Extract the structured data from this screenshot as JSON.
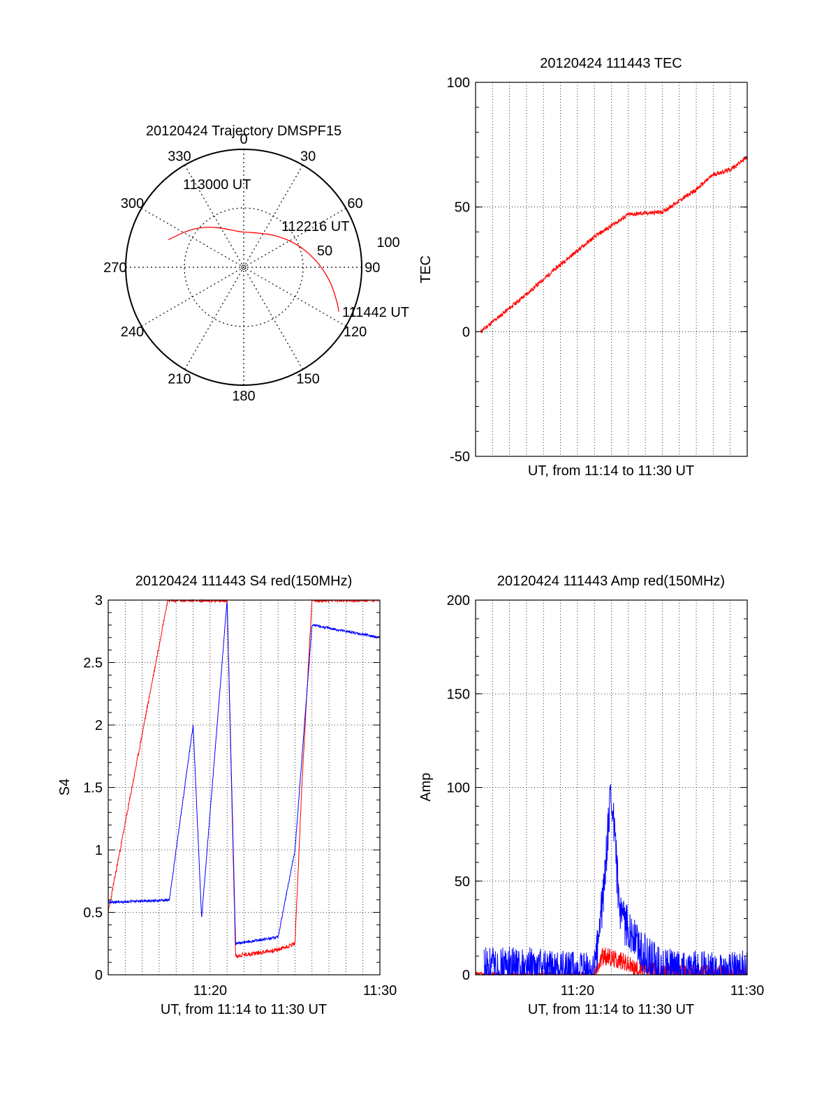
{
  "chart_data": [
    {
      "type": "polar",
      "title": "20120424 Trajectory DMSPF15",
      "azimuth_labels": [
        "0",
        "30",
        "60",
        "90",
        "120",
        "150",
        "180",
        "210",
        "240",
        "270",
        "300",
        "330"
      ],
      "radial_ticks": [
        "50",
        "100"
      ],
      "trajectory": {
        "color": "#ff0000",
        "points": [
          [
            -70,
            68
          ],
          [
            -55,
            56
          ],
          [
            -40,
            45
          ],
          [
            -25,
            36
          ],
          [
            -5,
            30
          ],
          [
            10,
            30
          ],
          [
            20,
            31
          ],
          [
            30,
            33
          ],
          [
            40,
            36
          ],
          [
            50,
            40
          ],
          [
            60,
            45
          ],
          [
            70,
            51
          ],
          [
            80,
            58
          ],
          [
            90,
            66
          ],
          [
            100,
            75
          ],
          [
            110,
            84
          ],
          [
            115,
            89
          ]
        ]
      },
      "annotations": [
        {
          "text": "113000 UT",
          "az": -70,
          "r": 68
        },
        {
          "text": "112216 UT",
          "az": 56,
          "r": 63
        },
        {
          "text": "111442 UT",
          "az": 114,
          "r": 92
        }
      ]
    },
    {
      "type": "line",
      "title": "20120424 111443 TEC",
      "ylabel": "TEC",
      "xlabel": "UT, from 11:14 to 11:30 UT",
      "ylim": [
        -50,
        100
      ],
      "yticks": [
        "-50",
        "0",
        "50",
        "100"
      ],
      "xticks": [],
      "grid": true,
      "series": [
        {
          "color": "#ff0000",
          "x_min": [
            0.3,
            3.0,
            5.0,
            7.0,
            9.0,
            11.0,
            13.0,
            14.0,
            15.0,
            16.0
          ],
          "y": [
            0,
            15,
            27,
            38,
            47,
            48,
            57,
            63,
            65,
            70
          ]
        }
      ]
    },
    {
      "type": "line",
      "title": "20120424 111443 S4 red(150MHz)",
      "ylabel": "S4",
      "xlabel": "UT, from 11:14 to 11:30 UT",
      "ylim": [
        0,
        3
      ],
      "yticks": [
        "0",
        "0.5",
        "1",
        "1.5",
        "2",
        "2.5",
        "3"
      ],
      "xticks": [
        "11:20",
        "11:30"
      ],
      "grid": true,
      "series": [
        {
          "color": "#ff0000",
          "x_min": [
            0.0,
            3.5,
            7.0,
            7.5,
            10.0,
            11.0,
            11.4,
            12.0,
            16.0
          ],
          "y": [
            0.5,
            3.0,
            3.0,
            0.15,
            0.2,
            0.25,
            1.5,
            3.0,
            3.0
          ]
        },
        {
          "color": "#0000ff",
          "x_min": [
            0.0,
            3.6,
            5.0,
            5.5,
            7.0,
            7.5,
            10.0,
            11.0,
            12.0,
            16.0
          ],
          "y": [
            0.58,
            0.6,
            2.0,
            0.45,
            3.0,
            0.25,
            0.3,
            1.0,
            2.8,
            2.7
          ]
        }
      ]
    },
    {
      "type": "line",
      "title": "20120424 111443 Amp red(150MHz)",
      "ylabel": "Amp",
      "xlabel": "UT, from 11:14 to 11:30 UT",
      "ylim": [
        0,
        200
      ],
      "yticks": [
        "0",
        "50",
        "100",
        "150",
        "200"
      ],
      "xticks": [
        "11:20",
        "11:30"
      ],
      "grid": true,
      "series": [
        {
          "color": "#ff0000",
          "x_min": [
            0.0,
            7.0,
            7.5,
            8.5,
            9.5,
            10.5,
            11.5,
            16.0
          ],
          "y": [
            0,
            0,
            10,
            8,
            3,
            2,
            1,
            0
          ]
        },
        {
          "color": "#0000ff",
          "x_min": [
            0.5,
            3.5,
            5.0,
            6.5,
            7.0,
            7.5,
            8.0,
            8.5,
            9.0,
            10.0,
            11.0,
            12.0,
            16.0
          ],
          "y": [
            3,
            3,
            1,
            0,
            1,
            40,
            100,
            30,
            25,
            10,
            3,
            1,
            1
          ]
        }
      ]
    }
  ]
}
